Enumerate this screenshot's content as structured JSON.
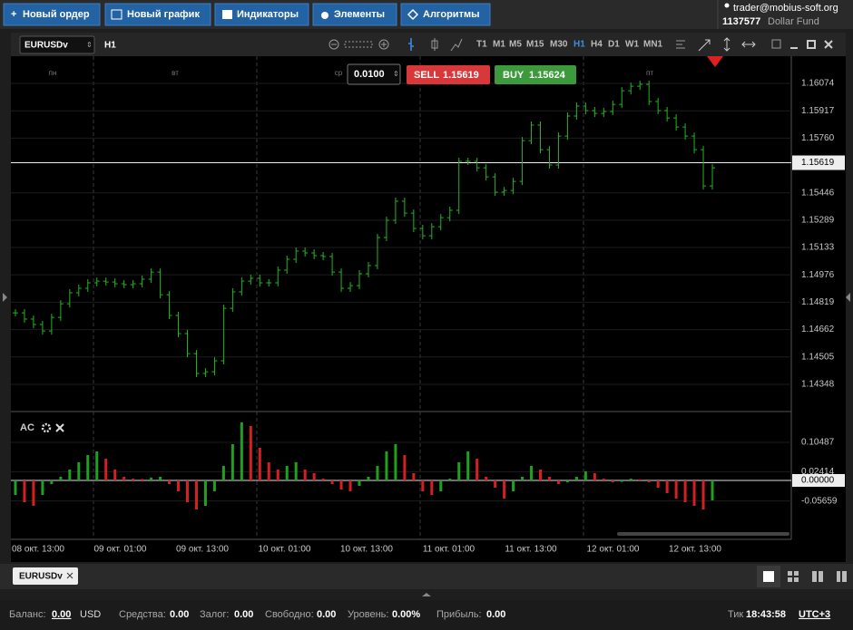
{
  "header": {
    "buttons": [
      "Новый ордер",
      "Новый график",
      "Индикаторы",
      "Элементы",
      "Алгоритмы"
    ],
    "account": {
      "email": "trader@mobius-soft.org",
      "number": "1137577",
      "fund": "Dollar Fund"
    }
  },
  "chart_toolbar": {
    "symbol": "EURUSDv",
    "period": "H1",
    "timeframes": [
      "T1",
      "M1",
      "M5",
      "M15",
      "M30",
      "H1",
      "H4",
      "D1",
      "W1",
      "MN1"
    ]
  },
  "trade": {
    "lot": "0.0100",
    "sell_label": "SELL",
    "sell_price": "1.15619",
    "buy_label": "BUY",
    "buy_price": "1.15624"
  },
  "chart_data": [
    {
      "type": "ohlc",
      "color": "#22b422",
      "values": [
        1.14758,
        1.14722,
        1.14691,
        1.14654,
        1.14732,
        1.1481,
        1.14873,
        1.14899,
        1.1493,
        1.1494,
        1.14935,
        1.14925,
        1.1492,
        1.14925,
        1.14951,
        1.14992,
        1.14862,
        1.14743,
        1.14639,
        1.14524,
        1.1441,
        1.1442,
        1.14483,
        1.14784,
        1.14878,
        1.1494,
        1.14956,
        1.1493,
        1.1493,
        1.15003,
        1.15065,
        1.15112,
        1.15102,
        1.15086,
        1.15081,
        1.14992,
        1.14899,
        1.14914,
        1.14982,
        1.15029,
        1.1519,
        1.15289,
        1.15398,
        1.1533,
        1.15242,
        1.152,
        1.15252,
        1.15304,
        1.15346,
        1.15627,
        1.15627,
        1.1559,
        1.15538,
        1.1545,
        1.1546,
        1.15512,
        1.15746,
        1.15835,
        1.15694,
        1.15606,
        1.15772,
        1.15887,
        1.15944,
        1.15918,
        1.15902,
        1.15913,
        1.15954,
        1.16032,
        1.16058,
        1.16069,
        1.1597,
        1.15918,
        1.15876,
        1.15824,
        1.15772,
        1.15694,
        1.15486,
        1.1559
      ],
      "ylim": [
        1.14197,
        1.1623
      ],
      "yticks": [
        1.16074,
        1.15917,
        {
          "value": 1.1576,
          "label": "1.15760"
        },
        1.15446,
        1.15289,
        1.15133,
        1.14976,
        1.14819,
        1.14662,
        1.14505,
        1.14348
      ],
      "last_price": 1.15619,
      "day_labels": [
        "пн",
        "вт",
        "ср",
        "пт"
      ],
      "x_labels": [
        "08 окт. 13:00",
        "09 окт. 01:00",
        "09 окт. 13:00",
        "10 окт. 01:00",
        "10 окт. 13:00",
        "11 окт. 01:00",
        "11 окт. 13:00",
        "12 окт. 01:00",
        "12 окт. 13:00"
      ]
    },
    {
      "type": "histogram",
      "title": "AC",
      "up_color": "#1fa01f",
      "down_color": "#d42020",
      "values": [
        -0.04,
        -0.06,
        -0.07,
        -0.04,
        -0.01,
        0.01,
        0.03,
        0.05,
        0.07,
        0.08,
        0.06,
        0.03,
        0.01,
        0.005,
        0.004,
        0.008,
        0.01,
        -0.01,
        -0.03,
        -0.06,
        -0.08,
        -0.07,
        -0.03,
        0.04,
        0.1,
        0.16,
        0.15,
        0.09,
        0.05,
        0.03,
        0.04,
        0.05,
        0.03,
        0.02,
        0.005,
        -0.01,
        -0.025,
        -0.03,
        -0.015,
        0.01,
        0.04,
        0.08,
        0.1,
        0.07,
        0.02,
        -0.03,
        -0.04,
        -0.03,
        0.005,
        0.05,
        0.08,
        0.06,
        0.01,
        -0.02,
        -0.05,
        -0.03,
        0.01,
        0.04,
        0.03,
        0.01,
        -0.01,
        -0.005,
        0.01,
        0.025,
        0.02,
        0.005,
        -0.005,
        -0.004,
        0.005,
        0.003,
        -0.005,
        -0.02,
        -0.035,
        -0.05,
        -0.06,
        -0.07,
        -0.08,
        -0.055
      ],
      "ylim": [
        -0.155,
        0.1875
      ],
      "yticks": [
        0.10487,
        0.02414,
        {
          "value": 0,
          "label": "0.00000"
        },
        -0.05659
      ]
    }
  ],
  "tabs": [
    "EURUSDv"
  ],
  "status": {
    "balance_label": "Баланс:",
    "balance": "0.00",
    "currency": "USD",
    "equity_label": "Средства:",
    "equity": "0.00",
    "margin_label": "Залог:",
    "margin": "0.00",
    "free_label": "Свободно:",
    "free": "0.00",
    "level_label": "Уровень:",
    "level": "0.00%",
    "profit_label": "Прибыль:",
    "profit": "0.00",
    "tick_label": "Тик",
    "time": "18:43:58",
    "timezone": "UTC+3"
  }
}
